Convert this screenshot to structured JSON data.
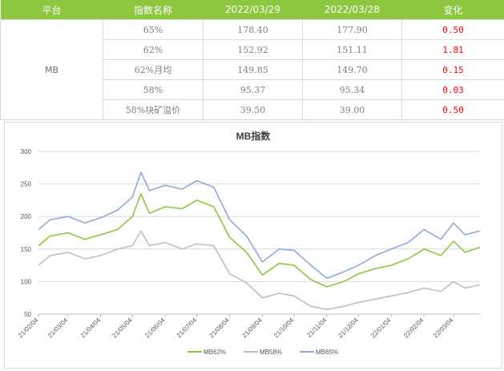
{
  "table": {
    "headers": [
      "平台",
      "指数名称",
      "2022/03/29",
      "2022/03/28",
      "变化"
    ],
    "platform": "MB",
    "rows": [
      {
        "name": "65%",
        "d1": "178.40",
        "d2": "177.90",
        "chg": "0.50"
      },
      {
        "name": "62%",
        "d1": "152.92",
        "d2": "151.11",
        "chg": "1.81"
      },
      {
        "name": "62%月均",
        "d1": "149.85",
        "d2": "149.70",
        "chg": "0.15"
      },
      {
        "name": "58%",
        "d1": "95.37",
        "d2": "95.34",
        "chg": "0.03"
      },
      {
        "name": "58%块矿溢价",
        "d1": "39.50",
        "d2": "39.00",
        "chg": "0.50"
      }
    ]
  },
  "colors": {
    "header_bg": "#8dc63f",
    "positive_change": "#ff0000",
    "mb62": "#8dc63f",
    "mb58": "#bfbfbf",
    "mb65": "#8eaadb"
  },
  "chart_data": {
    "type": "line",
    "title": "MB指数",
    "xlabel": "",
    "ylabel": "",
    "ylim": [
      50,
      300
    ],
    "yticks": [
      50,
      100,
      150,
      200,
      250,
      300
    ],
    "xticks": [
      "21/02/04",
      "21/03/04",
      "21/04/04",
      "21/05/04",
      "21/06/04",
      "21/07/04",
      "21/08/04",
      "21/09/04",
      "21/10/04",
      "21/11/04",
      "21/12/04",
      "22/01/04",
      "22/02/04",
      "22/03/04"
    ],
    "grid": true,
    "legend_position": "bottom",
    "series": [
      {
        "name": "MB62%",
        "color": "#8dc63f",
        "x": [
          "21/02/04",
          "21/02/15",
          "21/03/04",
          "21/03/20",
          "21/04/04",
          "21/04/20",
          "21/05/04",
          "21/05/12",
          "21/05/20",
          "21/06/04",
          "21/06/20",
          "21/07/04",
          "21/07/20",
          "21/08/04",
          "21/08/20",
          "21/09/04",
          "21/09/20",
          "21/10/04",
          "21/10/20",
          "21/11/04",
          "21/11/20",
          "21/12/04",
          "21/12/20",
          "22/01/04",
          "22/01/20",
          "22/02/04",
          "22/02/20",
          "22/03/04",
          "22/03/15",
          "22/03/29"
        ],
        "values": [
          155,
          170,
          175,
          165,
          172,
          180,
          200,
          235,
          205,
          215,
          212,
          225,
          215,
          168,
          145,
          110,
          128,
          125,
          103,
          92,
          100,
          112,
          120,
          125,
          135,
          150,
          140,
          162,
          145,
          153
        ]
      },
      {
        "name": "MB58%",
        "color": "#bfbfbf",
        "x": [
          "21/02/04",
          "21/02/15",
          "21/03/04",
          "21/03/20",
          "21/04/04",
          "21/04/20",
          "21/05/04",
          "21/05/12",
          "21/05/20",
          "21/06/04",
          "21/06/20",
          "21/07/04",
          "21/07/20",
          "21/08/04",
          "21/08/20",
          "21/09/04",
          "21/09/20",
          "21/10/04",
          "21/10/20",
          "21/11/04",
          "21/11/20",
          "21/12/04",
          "21/12/20",
          "22/01/04",
          "22/01/20",
          "22/02/04",
          "22/02/20",
          "22/03/04",
          "22/03/15",
          "22/03/29"
        ],
        "values": [
          125,
          140,
          145,
          135,
          140,
          150,
          155,
          178,
          155,
          160,
          150,
          158,
          155,
          112,
          98,
          75,
          82,
          78,
          62,
          57,
          62,
          68,
          73,
          78,
          83,
          90,
          85,
          100,
          90,
          95
        ]
      },
      {
        "name": "MB65%",
        "color": "#8eaadb",
        "x": [
          "21/02/04",
          "21/02/15",
          "21/03/04",
          "21/03/20",
          "21/04/04",
          "21/04/20",
          "21/05/04",
          "21/05/12",
          "21/05/20",
          "21/06/04",
          "21/06/20",
          "21/07/04",
          "21/07/20",
          "21/08/04",
          "21/08/20",
          "21/09/04",
          "21/09/20",
          "21/10/04",
          "21/10/20",
          "21/11/04",
          "21/11/20",
          "21/12/04",
          "21/12/20",
          "22/01/04",
          "22/01/20",
          "22/02/04",
          "22/02/20",
          "22/03/04",
          "22/03/15",
          "22/03/29"
        ],
        "values": [
          180,
          195,
          200,
          190,
          198,
          210,
          230,
          268,
          240,
          248,
          242,
          255,
          245,
          195,
          170,
          130,
          150,
          148,
          125,
          105,
          115,
          125,
          140,
          150,
          160,
          180,
          165,
          190,
          172,
          178
        ]
      }
    ]
  }
}
